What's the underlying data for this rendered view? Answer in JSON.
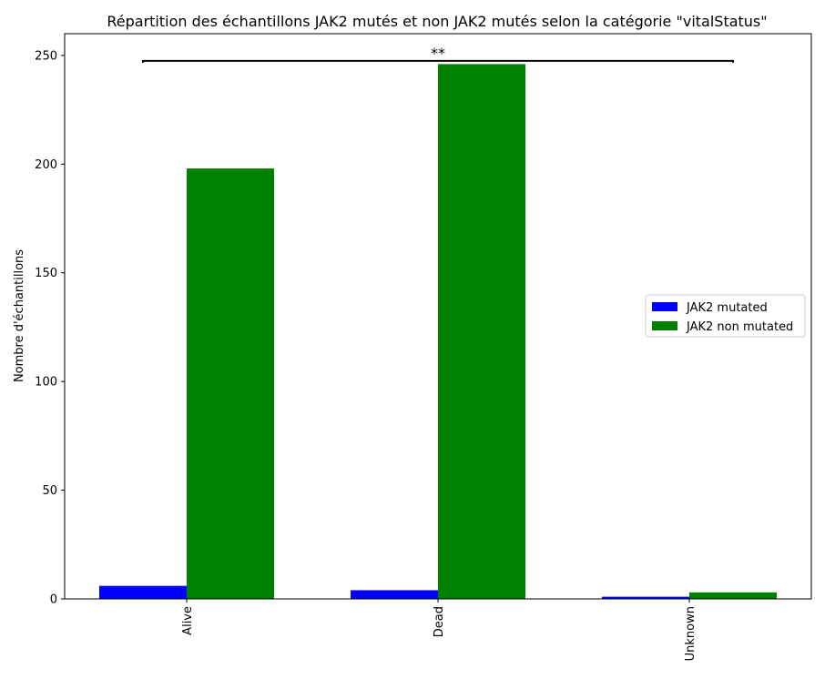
{
  "chart_data": {
    "type": "bar",
    "title": "Répartition des échantillons JAK2 mutés et non JAK2 mutés selon la catégorie \"vitalStatus\"",
    "xlabel": "",
    "ylabel": "Nombre d'échantillons",
    "categories": [
      "Alive",
      "Dead",
      "Unknown"
    ],
    "series": [
      {
        "name": "JAK2 mutated",
        "color": "#0000ff",
        "values": [
          6,
          4,
          1
        ]
      },
      {
        "name": "JAK2 non mutated",
        "color": "#008000",
        "values": [
          198,
          246,
          3
        ]
      }
    ],
    "ylim": [
      0,
      260
    ],
    "yticks": [
      0,
      50,
      100,
      150,
      200,
      250
    ],
    "legend": "center-right",
    "annotation": {
      "text": "**",
      "from_category": "Alive",
      "to_category": "Unknown",
      "y": 247.5
    },
    "grid": false
  }
}
